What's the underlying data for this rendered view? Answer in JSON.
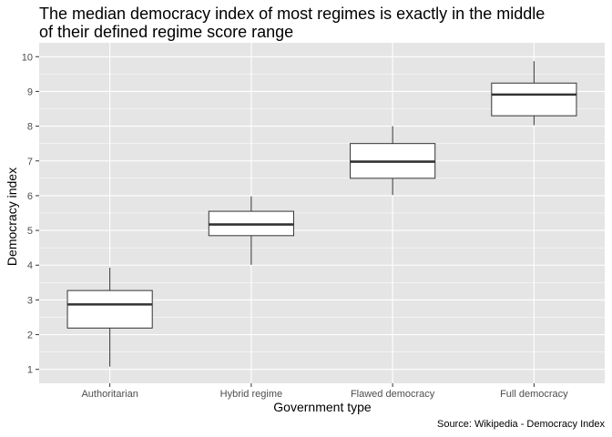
{
  "title_lines": [
    "The median democracy index of most regimes is exactly in the middle",
    "of their defined regime score range"
  ],
  "caption": "Source: Wikipedia - Democracy Index",
  "colors": {
    "panel_bg": "#e5e5e5",
    "grid": "#ffffff",
    "box_fill": "#ffffff",
    "box_stroke": "#333333",
    "tick_text": "#4d4d4d"
  },
  "chart_data": {
    "type": "boxplot",
    "title": "The median democracy index of most regimes is exactly in the middle of their defined regime score range",
    "xlabel": "Government type",
    "ylabel": "Democracy index",
    "ylim": [
      0.6,
      10.4
    ],
    "yticks": [
      1,
      2,
      3,
      4,
      5,
      6,
      7,
      8,
      9,
      10
    ],
    "grid": true,
    "legend": "none",
    "categories": [
      "Authoritarian",
      "Hybrid regime",
      "Flawed democracy",
      "Full democracy"
    ],
    "boxes": [
      {
        "category": "Authoritarian",
        "min": 1.08,
        "q1": 2.19,
        "median": 2.87,
        "q3": 3.27,
        "max": 3.93
      },
      {
        "category": "Hybrid regime",
        "min": 4.01,
        "q1": 4.85,
        "median": 5.17,
        "q3": 5.55,
        "max": 5.98
      },
      {
        "category": "Flawed democracy",
        "min": 6.02,
        "q1": 6.5,
        "median": 6.98,
        "q3": 7.5,
        "max": 8.0
      },
      {
        "category": "Full democracy",
        "min": 8.03,
        "q1": 8.3,
        "median": 8.91,
        "q3": 9.24,
        "max": 9.87
      }
    ]
  }
}
